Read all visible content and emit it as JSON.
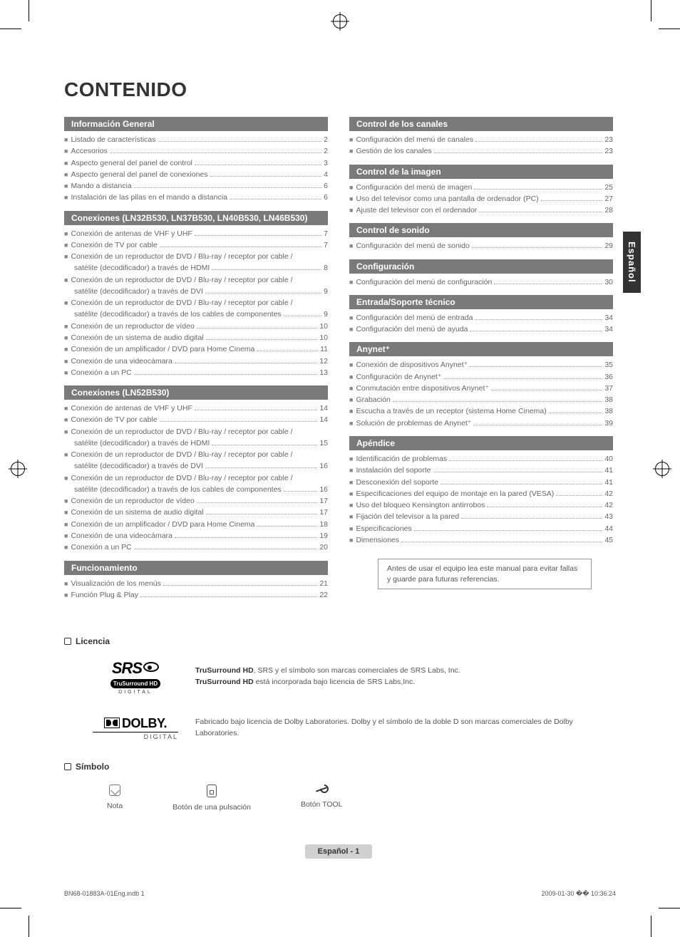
{
  "crop_registration": true,
  "side_tab": "Español",
  "main_title": "CONTENIDO",
  "left_sections": [
    {
      "header": "Información General",
      "items": [
        {
          "label": "Listado de características",
          "page": "2"
        },
        {
          "label": "Accesorios",
          "page": "2"
        },
        {
          "label": "Aspecto general del panel de control",
          "page": "3"
        },
        {
          "label": "Aspecto general del panel de conexiones",
          "page": "4"
        },
        {
          "label": "Mando a distancia",
          "page": "6"
        },
        {
          "label": "Instalación de las pilas en el mando a distancia",
          "page": "6"
        }
      ]
    },
    {
      "header": "Conexiones (LN32B530, LN37B530, LN40B530, LN46B530)",
      "items": [
        {
          "label": "Conexión de antenas de VHF y UHF",
          "page": "7"
        },
        {
          "label": "Conexión de TV por cable",
          "page": "7"
        },
        {
          "label": "Conexión de un reproductor de DVD / Blu-ray / receptor por cable / satélite (decodificador) a través de HDMI",
          "page": "8",
          "wrap": true
        },
        {
          "label": "Conexión de un reproductor de DVD / Blu-ray / receptor por cable / satélite (decodificador) a través de DVI",
          "page": "9",
          "wrap": true
        },
        {
          "label": "Conexión de un reproductor de DVD / Blu-ray / receptor por cable / satélite (decodificador) a través de los cables de componentes",
          "page": "9",
          "wrap": true
        },
        {
          "label": "Conexión de un reproductor de vídeo",
          "page": "10"
        },
        {
          "label": "Conexión de un sistema de audio digital",
          "page": "10"
        },
        {
          "label": "Conexión de un amplificador / DVD para Home Cinema",
          "page": "11"
        },
        {
          "label": "Conexión de una videocámara",
          "page": "12"
        },
        {
          "label": "Conexión a un PC",
          "page": "13"
        }
      ]
    },
    {
      "header": "Conexiones (LN52B530)",
      "items": [
        {
          "label": "Conexión de antenas de VHF y UHF",
          "page": "14"
        },
        {
          "label": "Conexión de TV por cable",
          "page": "14"
        },
        {
          "label": "Conexión de un reproductor de DVD / Blu-ray / receptor por cable / satélite (decodificador) a través de HDMI",
          "page": "15",
          "wrap": true
        },
        {
          "label": "Conexión de un reproductor de DVD / Blu-ray / receptor por cable / satélite (decodificador) a través de DVI",
          "page": "16",
          "wrap": true
        },
        {
          "label": "Conexión de un reproductor de DVD / Blu-ray / receptor por cable / satélite (decodificador) a través de los cables de componentes",
          "page": "16",
          "wrap": true
        },
        {
          "label": "Conexión de un reproductor de vídeo",
          "page": "17"
        },
        {
          "label": "Conexión de un sistema de audio digital",
          "page": "17"
        },
        {
          "label": "Conexión de un amplificador / DVD para Home Cinema",
          "page": "18"
        },
        {
          "label": "Conexión de una videocámara",
          "page": "19"
        },
        {
          "label": "Conexión a un PC",
          "page": "20"
        }
      ]
    },
    {
      "header": "Funcionamiento",
      "items": [
        {
          "label": "Visualización de los menús",
          "page": "21"
        },
        {
          "label": "Función Plug & Play",
          "page": "22"
        }
      ]
    }
  ],
  "right_sections": [
    {
      "header": "Control de los canales",
      "items": [
        {
          "label": "Configuración del menú de canales",
          "page": "23"
        },
        {
          "label": "Gestión de los canales",
          "page": "23"
        }
      ]
    },
    {
      "header": "Control de la imagen",
      "items": [
        {
          "label": "Configuración del menú de imagen",
          "page": "25"
        },
        {
          "label": "Uso del televisor como una pantalla de ordenador (PC)",
          "page": "27"
        },
        {
          "label": "Ajuste del televisor con el ordenador",
          "page": "28"
        }
      ]
    },
    {
      "header": "Control de sonido",
      "items": [
        {
          "label": "Configuración del menú de sonido",
          "page": "29"
        }
      ]
    },
    {
      "header": "Configuración",
      "items": [
        {
          "label": "Configuración del menú de configuración",
          "page": "30"
        }
      ]
    },
    {
      "header": "Entrada/Soporte técnico",
      "items": [
        {
          "label": "Configuración del menú de entrada",
          "page": "34"
        },
        {
          "label": "Configuración del menú de ayuda",
          "page": "34"
        }
      ]
    },
    {
      "header": "Anynet⁺",
      "items": [
        {
          "label": "Conexión de dispositivos Anynet⁺",
          "page": "35"
        },
        {
          "label": "Configuración de Anynet⁺",
          "page": "36"
        },
        {
          "label": "Conmutación entre dispositivos Anynet⁺",
          "page": "37"
        },
        {
          "label": "Grabación",
          "page": "38"
        },
        {
          "label": "Escucha a través de un receptor (sistema Home Cinema)",
          "page": "38"
        },
        {
          "label": "Solución de problemas de Anynet⁺",
          "page": "39"
        }
      ]
    },
    {
      "header": "Apéndice",
      "items": [
        {
          "label": "Identificación de problemas",
          "page": "40"
        },
        {
          "label": "Instalación del soporte",
          "page": "41"
        },
        {
          "label": "Desconexión del soporte",
          "page": "41"
        },
        {
          "label": "Especificaciones del equipo de montaje en la pared (VESA)",
          "page": "42"
        },
        {
          "label": "Uso del bloqueo Kensington antirrobos",
          "page": "42"
        },
        {
          "label": "Fijación del televisor a la pared",
          "page": "43"
        },
        {
          "label": "Especificaciones",
          "page": "44"
        },
        {
          "label": "Dimensiones",
          "page": "45"
        }
      ]
    }
  ],
  "note_box": "Antes de usar el equipo lea este manual para evitar fallas y guarde para futuras referencias.",
  "licencia": {
    "title": "Licencia",
    "rows": [
      {
        "logo": "srs",
        "text_bold": "TruSurround HD",
        "text": ", SRS y el símbolo  son marcas comerciales de SRS Labs, Inc.",
        "text2_bold": "TruSurround HD",
        "text2": " está incorporada bajo licencia de SRS Labs,Inc."
      },
      {
        "logo": "dolby",
        "text": "Fabricado bajo licencia de Dolby Laboratories. Dolby y el símbolo de la doble D son marcas comerciales de Dolby Laboratories."
      }
    ]
  },
  "simbolo": {
    "title": "Símbolo",
    "items": [
      {
        "icon": "nota",
        "label": "Nota"
      },
      {
        "icon": "pulsa",
        "label": "Botón de una pulsación"
      },
      {
        "icon": "tool",
        "label": "Botón TOOL"
      }
    ]
  },
  "footer_page": "Español - 1",
  "footer_left": "BN68-01883A-01Eng.indb   1",
  "footer_right": "2009-01-30   �� 10:36:24"
}
